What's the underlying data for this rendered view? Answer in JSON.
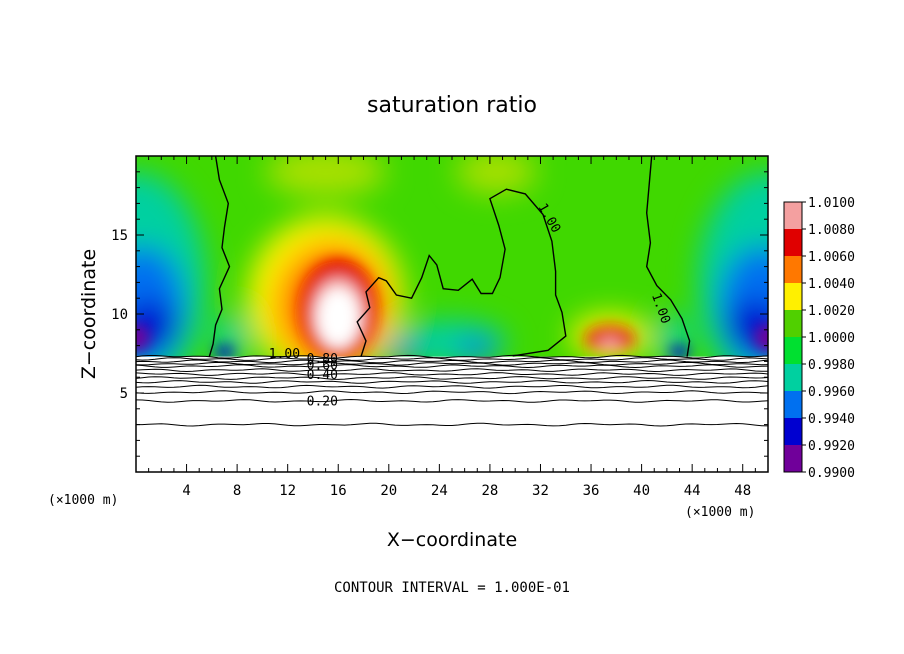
{
  "chart_data": {
    "type": "heatmap",
    "title": "saturation ratio",
    "xlabel": "X−coordinate",
    "ylabel": "Z−coordinate",
    "x_unit_label": "(×1000 m)",
    "y_unit_label": "(×1000 m)",
    "footer": "CONTOUR INTERVAL = 1.000E-01",
    "xlim": [
      0,
      50
    ],
    "ylim": [
      0,
      20
    ],
    "xticks": [
      4,
      8,
      12,
      16,
      20,
      24,
      28,
      32,
      36,
      40,
      44,
      48
    ],
    "yticks": [
      5,
      10,
      15
    ],
    "colorbar": {
      "ticks": [
        "1.0100",
        "1.0080",
        "1.0060",
        "1.0040",
        "1.0020",
        "1.0000",
        "0.9980",
        "0.9960",
        "0.9940",
        "0.9920",
        "0.9900"
      ],
      "min": 0.99,
      "max": 1.01,
      "colors": [
        "#f4a0a0",
        "#e00000",
        "#ff7800",
        "#fff000",
        "#50d000",
        "#00e030",
        "#00d0a0",
        "#0070f0",
        "#0000d0",
        "#70009a"
      ]
    },
    "contour_labels": [
      {
        "x": 10.5,
        "y": 7.2,
        "text": "1.00"
      },
      {
        "x": 13.5,
        "y": 6.9,
        "text": "0.80"
      },
      {
        "x": 13.5,
        "y": 6.5,
        "text": "0.60"
      },
      {
        "x": 13.5,
        "y": 5.9,
        "text": "0.40"
      },
      {
        "x": 13.5,
        "y": 4.2,
        "text": "0.20"
      },
      {
        "x": 31.8,
        "y": 16.8,
        "text": "1.00"
      },
      {
        "x": 40.8,
        "y": 11.2,
        "text": "1.00"
      }
    ],
    "stable_layer_levels": [
      7.3,
      7.15,
      7.0,
      6.85,
      6.7,
      6.45,
      6.2,
      5.95,
      5.7,
      5.4,
      5.05,
      4.5,
      3.0
    ],
    "field_features": [
      {
        "kind": "sub-saturated",
        "x": 0,
        "z": 12
      },
      {
        "kind": "sub-saturated",
        "x": 50,
        "z": 12
      },
      {
        "kind": "supersaturated",
        "x": 16,
        "z": 11
      },
      {
        "kind": "supersaturated",
        "x": 37.5,
        "z": 9.5
      },
      {
        "kind": "sub-saturated",
        "x": 25,
        "z": 8
      },
      {
        "kind": "sub-saturated",
        "x": 15,
        "z": 19
      },
      {
        "kind": "sub-saturated",
        "x": 28,
        "z": 19
      }
    ]
  }
}
